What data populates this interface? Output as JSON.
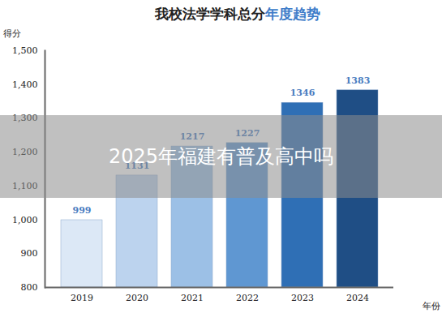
{
  "chart_data": {
    "type": "bar",
    "title": "我校法学学科总分年度趋势",
    "x_label": "年份",
    "y_label": "得分",
    "categories": [
      "2019",
      "2020",
      "2021",
      "2022",
      "2023",
      "2024"
    ],
    "values": [
      999,
      1131,
      1217,
      1227,
      1346,
      1383
    ],
    "colors": [
      "#dce8f6",
      "#bcd3ee",
      "#9cc0e6",
      "#5f97d2",
      "#2f6fb5",
      "#1f4e85"
    ],
    "ylim": [
      800,
      1500
    ],
    "yticks": [
      800,
      900,
      1000,
      1100,
      1200,
      1300,
      1400,
      1500
    ],
    "grid": false,
    "data_labels": true,
    "annotations": [
      "2025年福建有普及高中吗"
    ]
  }
}
